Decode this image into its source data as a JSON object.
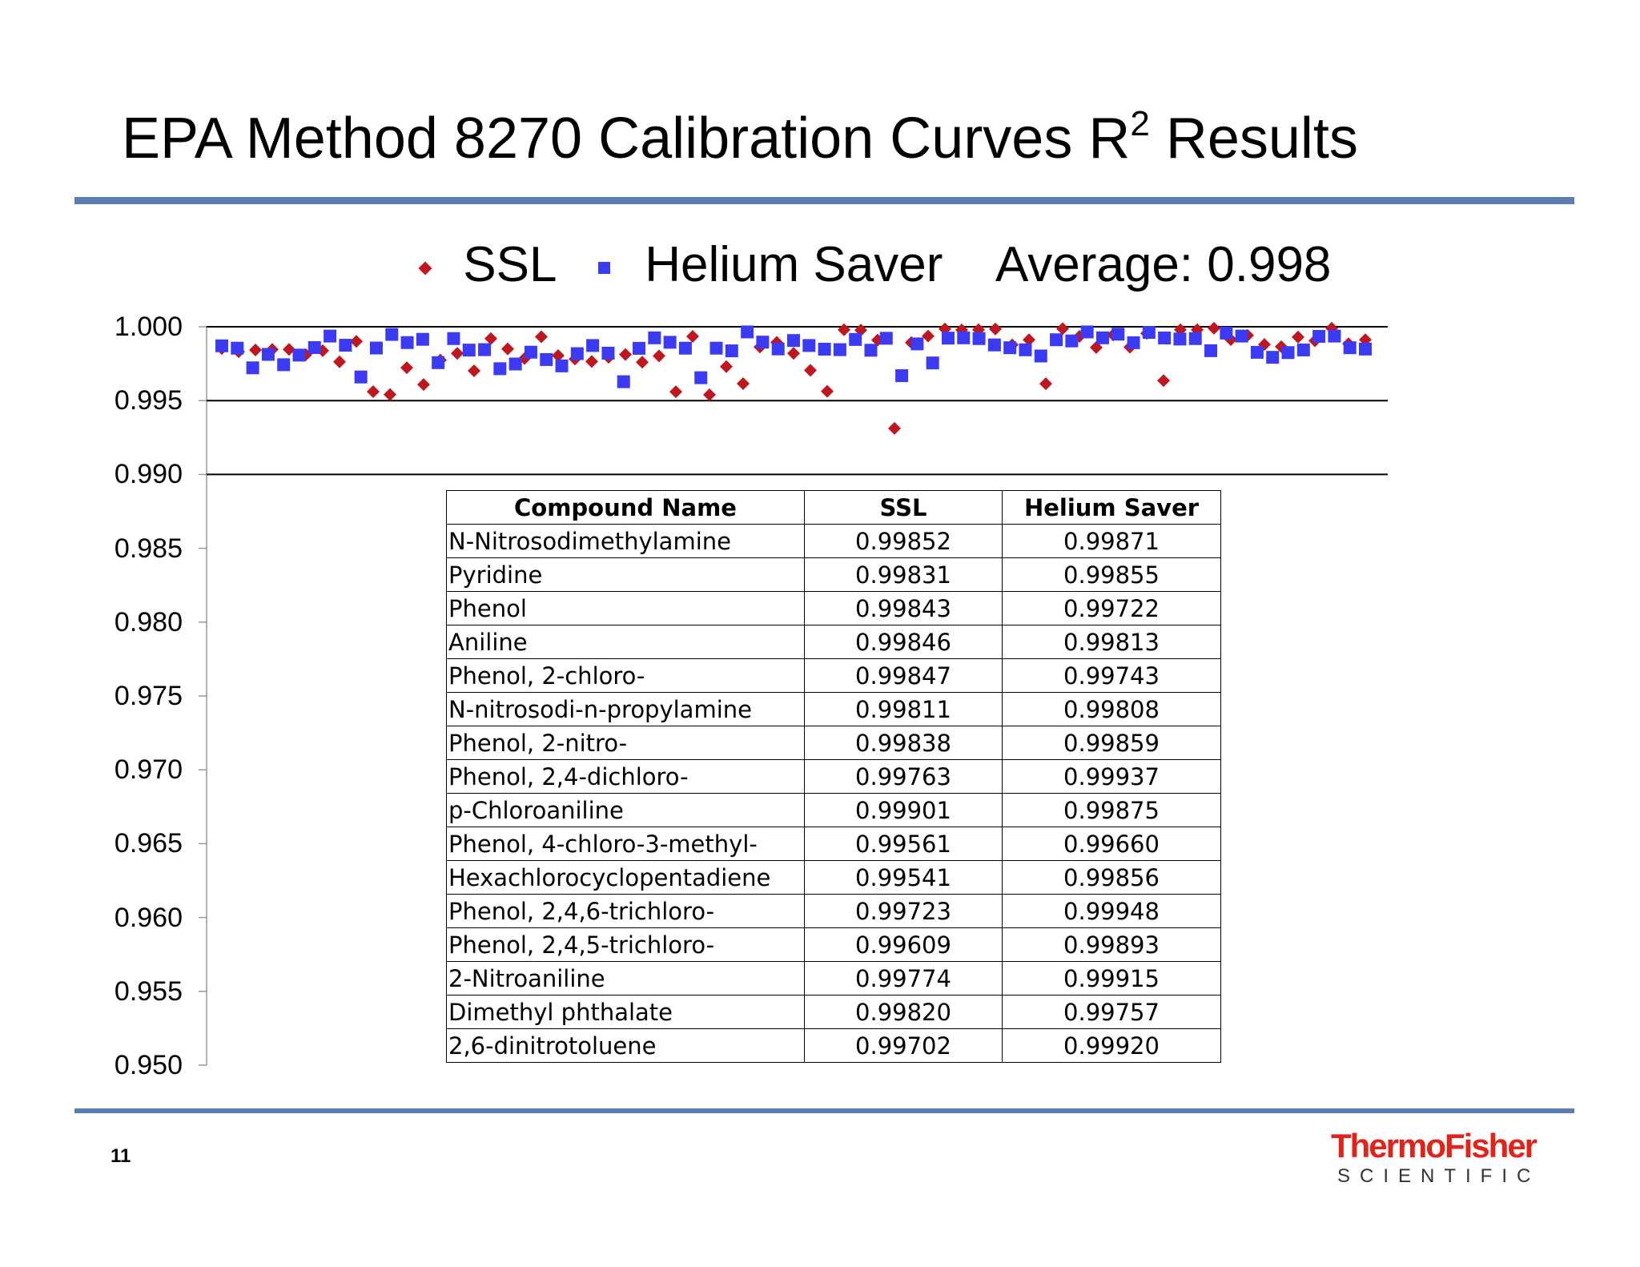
{
  "slide": {
    "title": "EPA Method 8270 Calibration Curves R",
    "title_sup": "2",
    "title_tail": " Results",
    "page_number": "11",
    "average_label": "Average: 0.998",
    "logo": {
      "main": "ThermoFisher",
      "sub": "SCIENTIFIC"
    }
  },
  "colors": {
    "ssl": "#c0161f",
    "helium_saver": "#3b3bf5",
    "rule": "#5b7db1"
  },
  "chart_data": {
    "type": "scatter",
    "ylim": [
      0.95,
      1.0
    ],
    "yticks": [
      "1.000",
      "0.995",
      "0.990",
      "0.985",
      "0.980",
      "0.975",
      "0.970",
      "0.965",
      "0.960",
      "0.955",
      "0.950"
    ],
    "gridlines_at": [
      1.0,
      0.995,
      0.99
    ],
    "legend_placement": "top",
    "series": [
      {
        "name": "SSL",
        "marker": "diamond",
        "values": [
          0.99852,
          0.99831,
          0.99843,
          0.99846,
          0.99847,
          0.99811,
          0.99838,
          0.99763,
          0.99901,
          0.99561,
          0.99541,
          0.99723,
          0.99609,
          0.99774,
          0.9982,
          0.99702,
          0.9992,
          0.9985,
          0.99785,
          0.99932,
          0.99805,
          0.99782,
          0.99765,
          0.99793,
          0.99812,
          0.9976,
          0.99803,
          0.9956,
          0.99935,
          0.9954,
          0.9973,
          0.99615,
          0.99863,
          0.99894,
          0.9982,
          0.99705,
          0.99563,
          0.9998,
          0.99977,
          0.9991,
          0.99312,
          0.99893,
          0.99937,
          0.99985,
          0.99978,
          0.9998,
          0.99985,
          0.99877,
          0.99912,
          0.99614,
          0.99987,
          0.99935,
          0.9986,
          0.99945,
          0.99862,
          0.99955,
          0.99635,
          0.9998,
          0.9998,
          0.9999,
          0.99913,
          0.99942,
          0.9988,
          0.99865,
          0.9993,
          0.99905,
          0.9999,
          0.99885,
          0.99912
        ]
      },
      {
        "name": "Helium Saver",
        "marker": "square",
        "values": [
          0.99871,
          0.99855,
          0.99722,
          0.99813,
          0.99743,
          0.99808,
          0.99859,
          0.99937,
          0.99875,
          0.9966,
          0.99856,
          0.99948,
          0.99893,
          0.99915,
          0.99757,
          0.9992,
          0.99842,
          0.99845,
          0.99716,
          0.99748,
          0.99828,
          0.99778,
          0.99735,
          0.99818,
          0.99873,
          0.99821,
          0.99628,
          0.99854,
          0.99925,
          0.99895,
          0.99855,
          0.99655,
          0.99855,
          0.99837,
          0.99965,
          0.99896,
          0.9985,
          0.99907,
          0.99873,
          0.99848,
          0.99845,
          0.99914,
          0.99841,
          0.99922,
          0.99669,
          0.99884,
          0.99755,
          0.99923,
          0.99925,
          0.9992,
          0.99877,
          0.99858,
          0.99844,
          0.99802,
          0.99912,
          0.99904,
          0.99965,
          0.99925,
          0.9995,
          0.99892,
          0.99962,
          0.99924,
          0.99917,
          0.9992,
          0.99838,
          0.99957,
          0.99937,
          0.99827,
          0.99793,
          0.99825,
          0.99843,
          0.99935,
          0.99937,
          0.99858,
          0.99849
        ]
      }
    ]
  },
  "table": {
    "headers": [
      "Compound Name",
      "SSL",
      "Helium Saver"
    ],
    "rows": [
      [
        "N-Nitrosodimethylamine",
        "0.99852",
        "0.99871"
      ],
      [
        "Pyridine",
        "0.99831",
        "0.99855"
      ],
      [
        "Phenol",
        "0.99843",
        "0.99722"
      ],
      [
        "Aniline",
        "0.99846",
        "0.99813"
      ],
      [
        "Phenol, 2-chloro-",
        "0.99847",
        "0.99743"
      ],
      [
        "N-nitrosodi-n-propylamine",
        "0.99811",
        "0.99808"
      ],
      [
        "Phenol, 2-nitro-",
        "0.99838",
        "0.99859"
      ],
      [
        "Phenol, 2,4-dichloro-",
        "0.99763",
        "0.99937"
      ],
      [
        "p-Chloroaniline",
        "0.99901",
        "0.99875"
      ],
      [
        "Phenol, 4-chloro-3-methyl-",
        "0.99561",
        "0.99660"
      ],
      [
        "Hexachlorocyclopentadiene",
        "0.99541",
        "0.99856"
      ],
      [
        "Phenol, 2,4,6-trichloro-",
        "0.99723",
        "0.99948"
      ],
      [
        "Phenol, 2,4,5-trichloro-",
        "0.99609",
        "0.99893"
      ],
      [
        "2-Nitroaniline",
        "0.99774",
        "0.99915"
      ],
      [
        "Dimethyl phthalate",
        "0.99820",
        "0.99757"
      ],
      [
        "2,6-dinitrotoluene",
        "0.99702",
        "0.99920"
      ]
    ]
  }
}
